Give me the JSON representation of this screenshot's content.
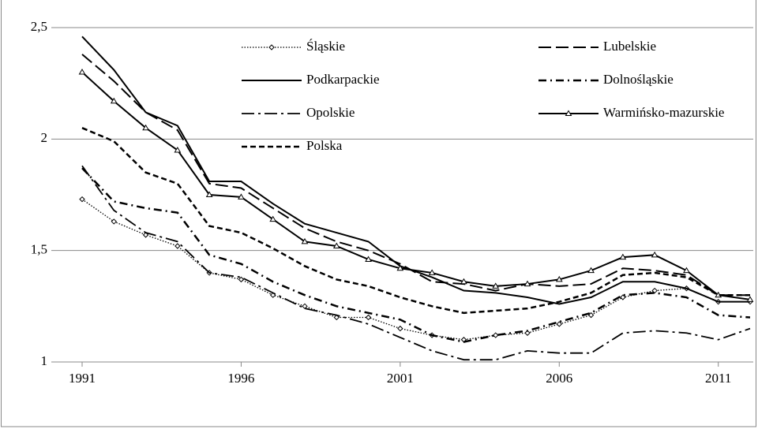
{
  "chart_data": {
    "type": "line",
    "x": [
      1991,
      1992,
      1993,
      1994,
      1995,
      1996,
      1997,
      1998,
      1999,
      2000,
      2001,
      2002,
      2003,
      2004,
      2005,
      2006,
      2007,
      2008,
      2009,
      2010,
      2011,
      2012
    ],
    "xlim": [
      1991,
      2012
    ],
    "xticks": [
      1991,
      1996,
      2001,
      2006,
      2011
    ],
    "ylim": [
      1,
      2.5
    ],
    "yticks": [
      {
        "value": 1,
        "label": "1"
      },
      {
        "value": 1.5,
        "label": "1,5"
      },
      {
        "value": 2,
        "label": "2"
      },
      {
        "value": 2.5,
        "label": "2,5"
      }
    ],
    "grid": true,
    "series": [
      {
        "name": "Śląskie",
        "color": "#000000",
        "dash": "dotted",
        "marker": "diamond",
        "values": [
          1.73,
          1.63,
          1.57,
          1.52,
          1.4,
          1.37,
          1.3,
          1.25,
          1.2,
          1.2,
          1.15,
          1.12,
          1.1,
          1.12,
          1.13,
          1.17,
          1.21,
          1.29,
          1.32,
          1.33,
          1.27,
          1.27
        ]
      },
      {
        "name": "Lubelskie",
        "color": "#000000",
        "dash": "longdash",
        "values": [
          2.38,
          2.26,
          2.12,
          2.04,
          1.8,
          1.78,
          1.69,
          1.6,
          1.54,
          1.5,
          1.44,
          1.36,
          1.35,
          1.32,
          1.35,
          1.34,
          1.35,
          1.42,
          1.41,
          1.39,
          1.3,
          1.3
        ]
      },
      {
        "name": "Podkarpackie",
        "color": "#000000",
        "dash": "solid",
        "values": [
          2.46,
          2.31,
          2.12,
          2.06,
          1.81,
          1.81,
          1.71,
          1.62,
          1.58,
          1.54,
          1.43,
          1.38,
          1.32,
          1.31,
          1.29,
          1.26,
          1.29,
          1.36,
          1.36,
          1.33,
          1.27,
          1.27
        ]
      },
      {
        "name": "Dolnośląskie",
        "color": "#000000",
        "dash": "dashdot",
        "values": [
          1.87,
          1.72,
          1.69,
          1.67,
          1.48,
          1.44,
          1.36,
          1.3,
          1.25,
          1.22,
          1.19,
          1.12,
          1.09,
          1.12,
          1.14,
          1.18,
          1.22,
          1.3,
          1.31,
          1.29,
          1.21,
          1.2
        ]
      },
      {
        "name": "Opolskie",
        "color": "#000000",
        "dash": "longdashdot",
        "values": [
          1.88,
          1.68,
          1.58,
          1.54,
          1.4,
          1.38,
          1.31,
          1.24,
          1.21,
          1.17,
          1.11,
          1.05,
          1.01,
          1.01,
          1.05,
          1.04,
          1.04,
          1.13,
          1.14,
          1.13,
          1.1,
          1.15
        ]
      },
      {
        "name": "Warmińsko-mazurskie",
        "color": "#000000",
        "dash": "solid",
        "marker": "triangle",
        "values": [
          2.3,
          2.17,
          2.05,
          1.95,
          1.75,
          1.74,
          1.64,
          1.54,
          1.52,
          1.46,
          1.42,
          1.4,
          1.36,
          1.34,
          1.35,
          1.37,
          1.41,
          1.47,
          1.48,
          1.41,
          1.3,
          1.28
        ]
      },
      {
        "name": "Polska",
        "color": "#000000",
        "dash": "shortdash",
        "values": [
          2.05,
          1.99,
          1.85,
          1.8,
          1.61,
          1.58,
          1.51,
          1.43,
          1.37,
          1.34,
          1.29,
          1.25,
          1.22,
          1.23,
          1.24,
          1.27,
          1.31,
          1.39,
          1.4,
          1.38,
          1.3,
          1.3
        ]
      }
    ]
  }
}
